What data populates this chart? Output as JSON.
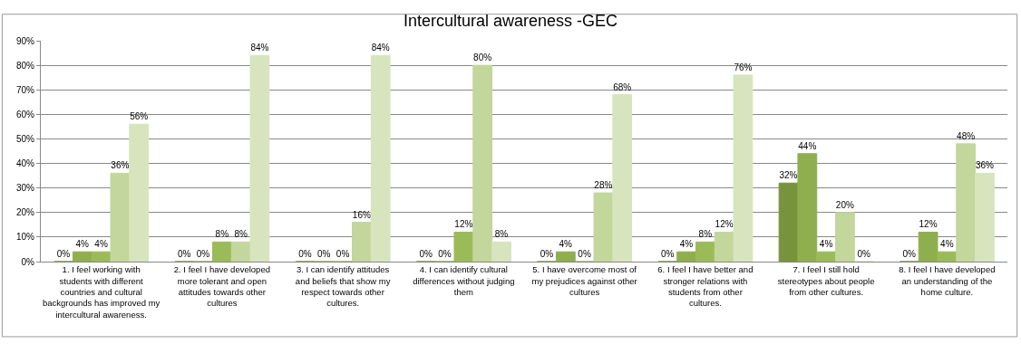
{
  "chart_data": {
    "type": "bar",
    "title": "Intercultural awareness -GEC",
    "categories": [
      "1. I feel working with students with different countries and cultural backgrounds has improved my intercultural awareness.",
      "2. I feel I have developed more tolerant and open attitudes towards other cultures",
      "3. I can identify attitudes and beliefs that show my respect towards other cultures.",
      "4. I can identify cultural differences without judging them",
      "5. I have overcome most of my prejudices against other cultures",
      "6. I feel I have better and stronger relations with students from other cultures.",
      "7. I feel I still hold stereotypes about people from other cultures.",
      "8. I feel I have developed an understanding of the home culture."
    ],
    "series": [
      {
        "color": "#77933c",
        "values": [
          0,
          0,
          0,
          0,
          0,
          0,
          32,
          0
        ],
        "value_labels": [
          "0%",
          "0%",
          "0%",
          "0%",
          "0%",
          "0%",
          "32%",
          "0%"
        ]
      },
      {
        "color": "#8faf4f",
        "values": [
          4,
          0,
          0,
          0,
          4,
          4,
          44,
          12
        ],
        "value_labels": [
          "4%",
          "0%",
          "0%",
          "0%",
          "4%",
          "4%",
          "44%",
          "12%"
        ]
      },
      {
        "color": "#9bbb59",
        "values": [
          4,
          8,
          0,
          12,
          0,
          8,
          4,
          4
        ],
        "value_labels": [
          "4%",
          "8%",
          "0%",
          "12%",
          "0%",
          "8%",
          "4%",
          "4%"
        ]
      },
      {
        "color": "#c3d69b",
        "values": [
          36,
          8,
          16,
          80,
          28,
          12,
          20,
          48
        ],
        "value_labels": [
          "36%",
          "8%",
          "16%",
          "80%",
          "28%",
          "12%",
          "20%",
          "48%"
        ]
      },
      {
        "color": "#d7e4bd",
        "values": [
          56,
          84,
          84,
          8,
          68,
          76,
          0,
          36
        ],
        "value_labels": [
          "56%",
          "84%",
          "84%",
          "8%",
          "68%",
          "76%",
          "0%",
          "36%"
        ]
      }
    ],
    "ylim": [
      0,
      90
    ],
    "yticks": [
      {
        "value": 0,
        "label": "0%"
      },
      {
        "value": 10,
        "label": "10%"
      },
      {
        "value": 20,
        "label": "20%"
      },
      {
        "value": 30,
        "label": "30%"
      },
      {
        "value": 40,
        "label": "40%"
      },
      {
        "value": 50,
        "label": "50%"
      },
      {
        "value": 60,
        "label": "60%"
      },
      {
        "value": 70,
        "label": "70%"
      },
      {
        "value": 80,
        "label": "80%"
      },
      {
        "value": 90,
        "label": "90%"
      }
    ],
    "grid": "y"
  }
}
